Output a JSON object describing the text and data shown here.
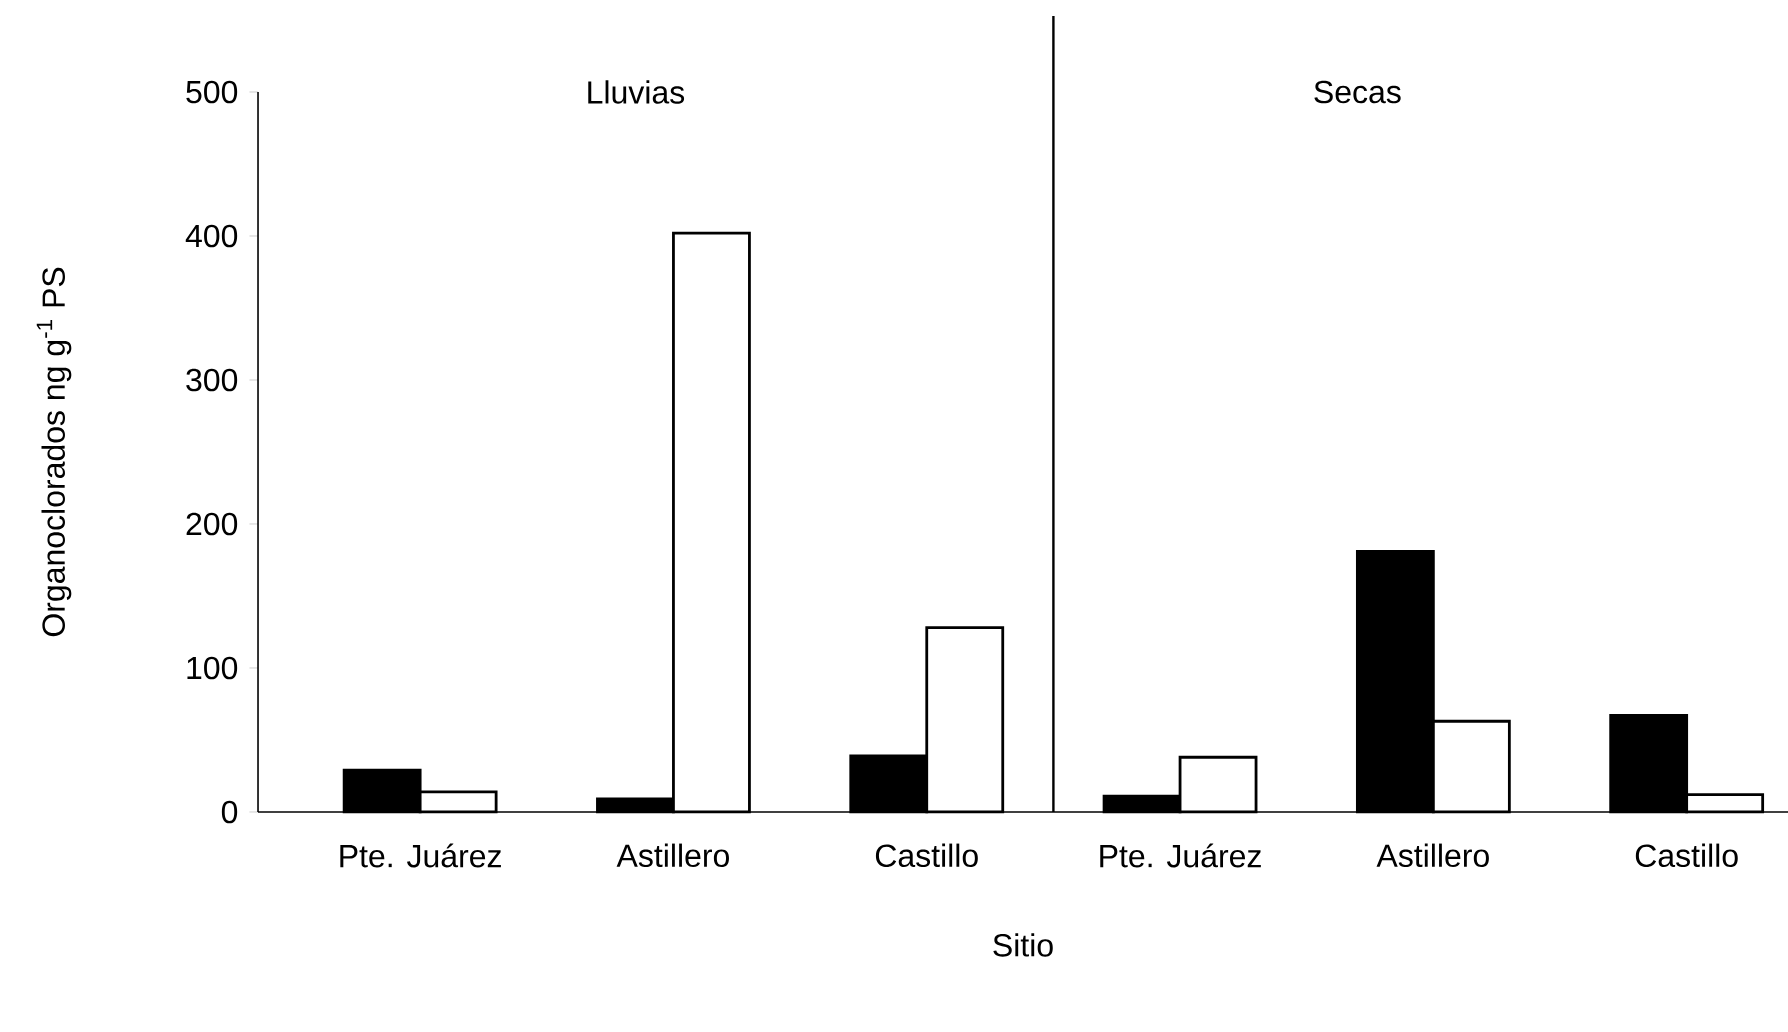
{
  "chart_data": {
    "type": "bar",
    "xlabel": "Sitio",
    "ylabel": "Organoclorados ng g$^{-1}$ PS",
    "categories": [
      "Pte. Juárez",
      "Astillero",
      "Castillo",
      "Pte. Juárez",
      "Astillero",
      "Castillo"
    ],
    "series": [
      {
        "color": "#000000",
        "values": [
          29,
          9,
          39,
          11,
          181,
          67
        ]
      },
      {
        "color": "#ffffff",
        "values": [
          14,
          402,
          128,
          38,
          63,
          12
        ]
      }
    ],
    "ylim": [
      0,
      500
    ],
    "yticks": [
      0,
      100,
      200,
      300,
      400,
      500
    ],
    "annotations": [
      "Lluvias",
      "Secas"
    ]
  }
}
